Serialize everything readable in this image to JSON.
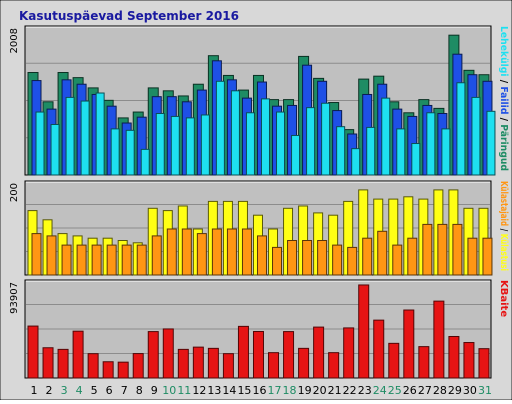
{
  "title": "Kasutuspäevad September 2016",
  "colors": {
    "frame_bg": "#d8d8d8",
    "plot_bg": "#c0c0c0",
    "title": "#1a1aa0",
    "grid": "#8c8c8c",
    "hits": "#1e8c64",
    "files": "#1e50e6",
    "pages": "#1ee0f0",
    "visits": "#ffff14",
    "sites": "#ff9614",
    "kbytes": "#e61414",
    "weekend_tick": "#1e8c64",
    "weekday_tick": "#000000"
  },
  "chart_data": {
    "type": "bar",
    "categories": [
      "1",
      "2",
      "3",
      "4",
      "5",
      "6",
      "7",
      "8",
      "9",
      "10",
      "11",
      "12",
      "13",
      "14",
      "15",
      "16",
      "17",
      "18",
      "19",
      "20",
      "21",
      "22",
      "23",
      "24",
      "25",
      "26",
      "27",
      "28",
      "29",
      "30",
      "31"
    ],
    "weekend_days": [
      "3",
      "4",
      "10",
      "11",
      "17",
      "18",
      "24",
      "25",
      "31"
    ],
    "panels": [
      {
        "name": "top",
        "scale_label": "2008",
        "scale_max": 2008,
        "legend": [
          "Päringud",
          "Failid",
          "Lehekülgi"
        ],
        "series": [
          {
            "name": "Päringud",
            "values": [
              1400,
              1000,
              1400,
              1330,
              1190,
              1020,
              780,
              860,
              1190,
              1150,
              1080,
              1240,
              1630,
              1360,
              1160,
              1360,
              1030,
              1030,
              1620,
              1320,
              990,
              620,
              1310,
              1350,
              1000,
              850,
              1030,
              910,
              1910,
              1430,
              1370
            ]
          },
          {
            "name": "Failid",
            "values": [
              1290,
              900,
              1300,
              1240,
              1100,
              940,
              710,
              790,
              1070,
              1070,
              1000,
              1160,
              1560,
              1300,
              1050,
              1270,
              940,
              950,
              1500,
              1280,
              880,
              560,
              1100,
              1240,
              900,
              800,
              950,
              840,
              1650,
              1370,
              1280
            ]
          },
          {
            "name": "Lehekülgi",
            "values": [
              860,
              690,
              1060,
              1010,
              1120,
              630,
              610,
              350,
              840,
              800,
              780,
              820,
              1280,
              1150,
              850,
              1040,
              860,
              540,
              920,
              980,
              660,
              360,
              650,
              1050,
              630,
              430,
              850,
              630,
              1260,
              1060,
              870
            ]
          }
        ]
      },
      {
        "name": "middle",
        "scale_label": "200",
        "scale_max": 200,
        "legend": [
          "Külastusi",
          "Külastajaid"
        ],
        "series": [
          {
            "name": "Külastusi",
            "values": [
              140,
              120,
              90,
              85,
              80,
              80,
              75,
              70,
              145,
              140,
              150,
              100,
              160,
              160,
              160,
              130,
              100,
              145,
              150,
              135,
              130,
              160,
              185,
              165,
              165,
              170,
              165,
              185,
              185,
              145,
              145
            ]
          },
          {
            "name": "Külastajaid",
            "values": [
              90,
              85,
              65,
              65,
              65,
              65,
              65,
              65,
              85,
              100,
              100,
              90,
              100,
              100,
              100,
              85,
              60,
              75,
              75,
              75,
              65,
              60,
              80,
              95,
              65,
              80,
              110,
              110,
              110,
              80,
              80
            ]
          }
        ]
      },
      {
        "name": "bottom",
        "scale_label": "93907",
        "scale_max": 93907,
        "legend": [
          "KBaite"
        ],
        "series": [
          {
            "name": "KBaite",
            "values": [
              50800,
              29600,
              28000,
              45800,
              23800,
              15900,
              15500,
              23900,
              45400,
              48000,
              28000,
              30200,
              29000,
              23800,
              50500,
              45500,
              24800,
              45400,
              29000,
              49800,
              24800,
              49000,
              91000,
              56600,
              33900,
              66500,
              30700,
              75200,
              40600,
              34700,
              28700
            ]
          }
        ]
      }
    ]
  }
}
